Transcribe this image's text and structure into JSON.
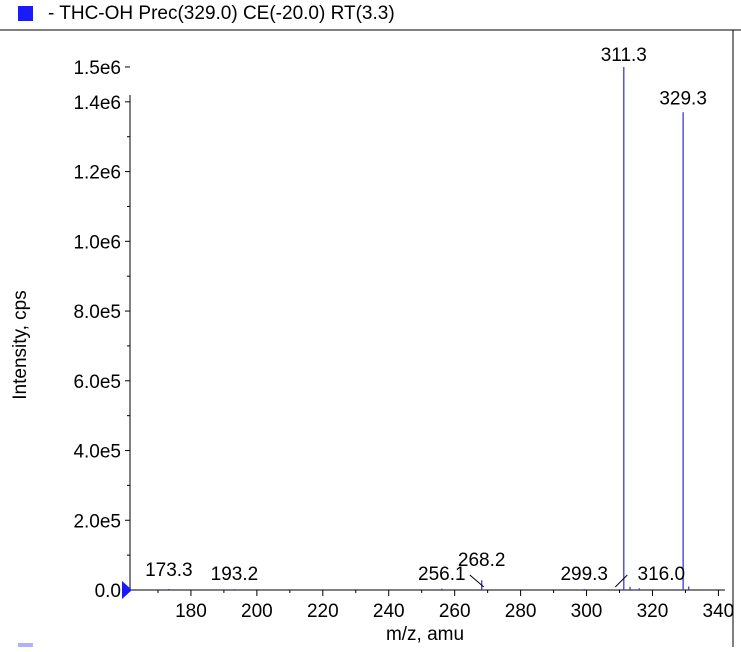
{
  "legend": {
    "label": "- THC-OH Prec(329.0) CE(-20.0) RT(3.3)",
    "color": "#1a1aff"
  },
  "chart_data": {
    "type": "bar",
    "title": "",
    "xlabel": "m/z, amu",
    "ylabel": "Intensity, cps",
    "xlim": [
      160,
      342
    ],
    "ylim": [
      0,
      1520000
    ],
    "x_ticks": [
      180,
      200,
      220,
      240,
      260,
      280,
      300,
      320,
      340
    ],
    "y_ticks": [
      {
        "value": 0,
        "label": "0.0"
      },
      {
        "value": 200000,
        "label": "2.0e5"
      },
      {
        "value": 400000,
        "label": "4.0e5"
      },
      {
        "value": 600000,
        "label": "6.0e5"
      },
      {
        "value": 800000,
        "label": "8.0e5"
      },
      {
        "value": 1000000,
        "label": "1.0e6"
      },
      {
        "value": 1200000,
        "label": "1.2e6"
      },
      {
        "value": 1400000,
        "label": "1.4e6"
      },
      {
        "value": 1500000,
        "label": "1.5e6"
      }
    ],
    "series": [
      {
        "color": "#3b3bd6",
        "peaks": [
          {
            "x": 173.3,
            "y": 3000
          },
          {
            "x": 193.2,
            "y": 2500
          },
          {
            "x": 256.1,
            "y": 4000
          },
          {
            "x": 268.2,
            "y": 28000
          },
          {
            "x": 299.3,
            "y": 3000
          },
          {
            "x": 311.3,
            "y": 1500000
          },
          {
            "x": 313.2,
            "y": 9000
          },
          {
            "x": 316.0,
            "y": 5000
          },
          {
            "x": 329.3,
            "y": 1370000
          },
          {
            "x": 331.0,
            "y": 10000
          }
        ]
      }
    ],
    "labels": [
      {
        "x": 173.3,
        "text": "173.3"
      },
      {
        "x": 193.2,
        "text": "193.2"
      },
      {
        "x": 256.1,
        "text": "256.1"
      },
      {
        "x": 268.2,
        "text": "268.2"
      },
      {
        "x": 299.3,
        "text": "299.3"
      },
      {
        "x": 311.3,
        "text": "311.3"
      },
      {
        "x": 316.0,
        "text": "316.0"
      },
      {
        "x": 329.3,
        "text": "329.3"
      }
    ]
  }
}
